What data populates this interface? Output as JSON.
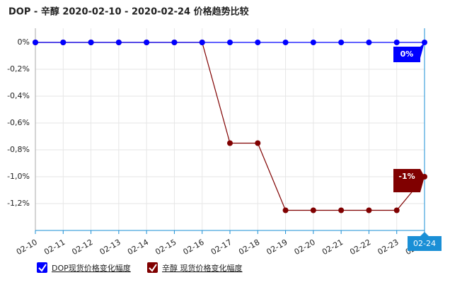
{
  "chart_data": {
    "type": "line",
    "title": "DOP - 辛醇 2020-02-10 - 2020-02-24 价格趋势比较",
    "categories": [
      "02-10",
      "02-11",
      "02-12",
      "02-13",
      "02-14",
      "02-15",
      "02-16",
      "02-17",
      "02-18",
      "02-19",
      "02-20",
      "02-21",
      "02-22",
      "02-23",
      "02-24"
    ],
    "series": [
      {
        "name": "DOP现货价格变化幅度",
        "color": "#0000ff",
        "values": [
          0,
          0,
          0,
          0,
          0,
          0,
          0,
          0,
          0,
          0,
          0,
          0,
          0,
          0,
          0
        ],
        "value_labels": [
          null,
          null,
          null,
          null,
          null,
          null,
          null,
          null,
          null,
          null,
          null,
          null,
          null,
          null,
          "0%"
        ]
      },
      {
        "name": "辛醇 现货价格变化幅度",
        "color": "#800000",
        "values": [
          0,
          0,
          0,
          0,
          0,
          0,
          0,
          -0.75,
          -0.75,
          -1.25,
          -1.25,
          -1.25,
          -1.25,
          -1.25,
          -1
        ],
        "value_labels": [
          null,
          null,
          null,
          null,
          null,
          null,
          null,
          null,
          null,
          null,
          null,
          null,
          null,
          null,
          "-1%"
        ]
      }
    ],
    "ylim": [
      -1.4,
      0
    ],
    "yticks": [
      {
        "value": 0,
        "label": "0%"
      },
      {
        "value": -0.2,
        "label": "-0,2%"
      },
      {
        "value": -0.4,
        "label": "-0,4%"
      },
      {
        "value": -0.6,
        "label": "-0,6%"
      },
      {
        "value": -0.8,
        "label": "-0,8%"
      },
      {
        "value": -1,
        "label": "-1,0%"
      },
      {
        "value": -1.2,
        "label": "-1,2%"
      }
    ],
    "grid": true
  }
}
